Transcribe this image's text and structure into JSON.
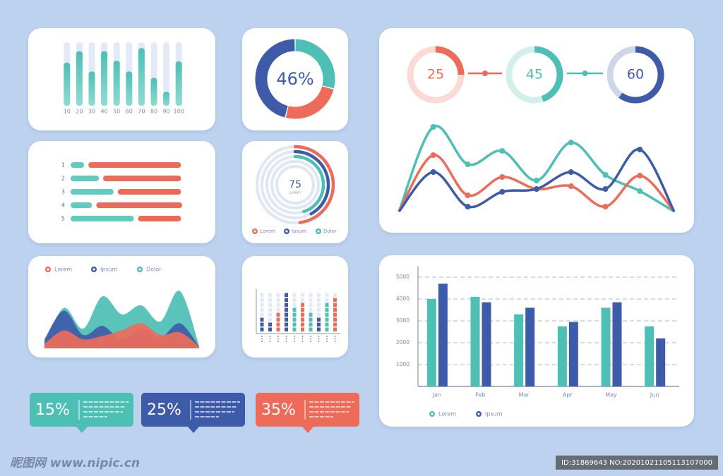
{
  "chart_data": [
    {
      "type": "bar",
      "categories": [
        "10",
        "20",
        "30",
        "40",
        "50",
        "60",
        "70",
        "80",
        "90",
        "100"
      ],
      "values": [
        68,
        86,
        54,
        86,
        71,
        54,
        91,
        44,
        22,
        70
      ],
      "color": "#4dbfb4",
      "ylim": [
        0,
        100
      ]
    },
    {
      "type": "donut",
      "values": [
        46,
        25,
        29
      ],
      "value_labels": [
        "46%",
        null,
        null
      ],
      "colors": [
        "#3d5ba9",
        "#ee6b5a",
        "#4dbfb4"
      ]
    },
    {
      "type": "progress",
      "categories": [
        "1",
        "2",
        "3",
        "4",
        "5"
      ],
      "series": [
        {
          "color": "#62cbc0",
          "values": [
            12,
            25,
            38,
            19,
            56
          ]
        },
        {
          "color": "#ec6a5a",
          "values": [
            82,
            69,
            56,
            76,
            38
          ]
        }
      ],
      "xlim": [
        0,
        100
      ]
    },
    {
      "type": "radial",
      "total": 75,
      "total_caption": "Lorem",
      "series": [
        {
          "name": "Lorem",
          "color": "#ee6b5a",
          "values": [
            48
          ]
        },
        {
          "name": "Ipsum",
          "color": "#3d5ba9",
          "values": [
            42
          ]
        },
        {
          "name": "Dolor",
          "color": "#4dbfb4",
          "values": [
            45
          ]
        }
      ],
      "ylim": [
        0,
        100
      ]
    },
    {
      "type": "area",
      "categories": [
        null,
        null,
        null,
        null,
        null,
        null,
        null,
        null,
        null
      ],
      "series": [
        {
          "name": "Lorem",
          "color": "#ee6b5a",
          "values": [
            5,
            20,
            10,
            14,
            20,
            28,
            15,
            18,
            2
          ]
        },
        {
          "name": "Ipsum",
          "color": "#3d5ba9",
          "values": [
            10,
            42,
            15,
            25,
            10,
            22,
            12,
            28,
            2
          ]
        },
        {
          "name": "Dolor",
          "color": "#4dbfb4",
          "values": [
            5,
            45,
            22,
            58,
            38,
            48,
            30,
            64,
            3
          ]
        }
      ],
      "ylim": [
        0,
        70
      ]
    },
    {
      "type": "dot-bar",
      "categories": [
        null,
        null,
        null,
        null,
        null,
        null,
        null,
        null,
        null,
        null
      ],
      "values": [
        3,
        2,
        4,
        8,
        5,
        6,
        4,
        3,
        6,
        7
      ],
      "colors": [
        "#3d5ba9",
        "#3d5ba9",
        "#ee6b5a",
        "#3d5ba9",
        "#4dbfb4",
        "#ee6b5a",
        "#4dbfb4",
        "#3d5ba9",
        "#4dbfb4",
        "#ee6b5a"
      ],
      "ylim": [
        0,
        8
      ]
    },
    {
      "type": "gauge",
      "values": [
        25,
        45,
        60
      ],
      "colors": [
        "#ee6b5a",
        "#4dbfb4",
        "#3d5ba9"
      ],
      "ylim": [
        0,
        100
      ]
    },
    {
      "type": "line",
      "categories": [
        null,
        null,
        null,
        null,
        null,
        null,
        null,
        null,
        null
      ],
      "series": [
        {
          "color": "#4dbfb4",
          "values": [
            0,
            120,
            67,
            86,
            44,
            98,
            52,
            29,
            0
          ]
        },
        {
          "color": "#ee6b5a",
          "values": [
            0,
            80,
            23,
            49,
            32,
            36,
            7,
            51,
            0
          ]
        },
        {
          "color": "#3d5ba9",
          "values": [
            0,
            56,
            7,
            28,
            32,
            56,
            32,
            88,
            0
          ]
        }
      ],
      "ylim": [
        0,
        130
      ]
    },
    {
      "type": "grouped-bar",
      "categories": [
        "Jan",
        "Feb",
        "Mar",
        "Apr",
        "May",
        "Jun"
      ],
      "series": [
        {
          "name": "Lorem",
          "color": "#4dbfb4",
          "values": [
            4000,
            4100,
            3300,
            2750,
            3600,
            2750
          ]
        },
        {
          "name": "Ipsum",
          "color": "#3d5ba9",
          "values": [
            4700,
            3850,
            3600,
            2950,
            3850,
            2200
          ]
        }
      ],
      "ylim": [
        0,
        5500
      ],
      "yticks": [
        1000,
        2000,
        3000,
        4000,
        5000
      ],
      "grid": true
    }
  ],
  "callouts": [
    {
      "text": "15%",
      "color": "#4dbfb4"
    },
    {
      "text": "25%",
      "color": "#3d5ba9"
    },
    {
      "text": "35%",
      "color": "#ee6b5a"
    }
  ],
  "watermark": {
    "site": "昵图网 www.nipic.cn",
    "id": "ID:31869643 NO:20201021105113107000"
  }
}
